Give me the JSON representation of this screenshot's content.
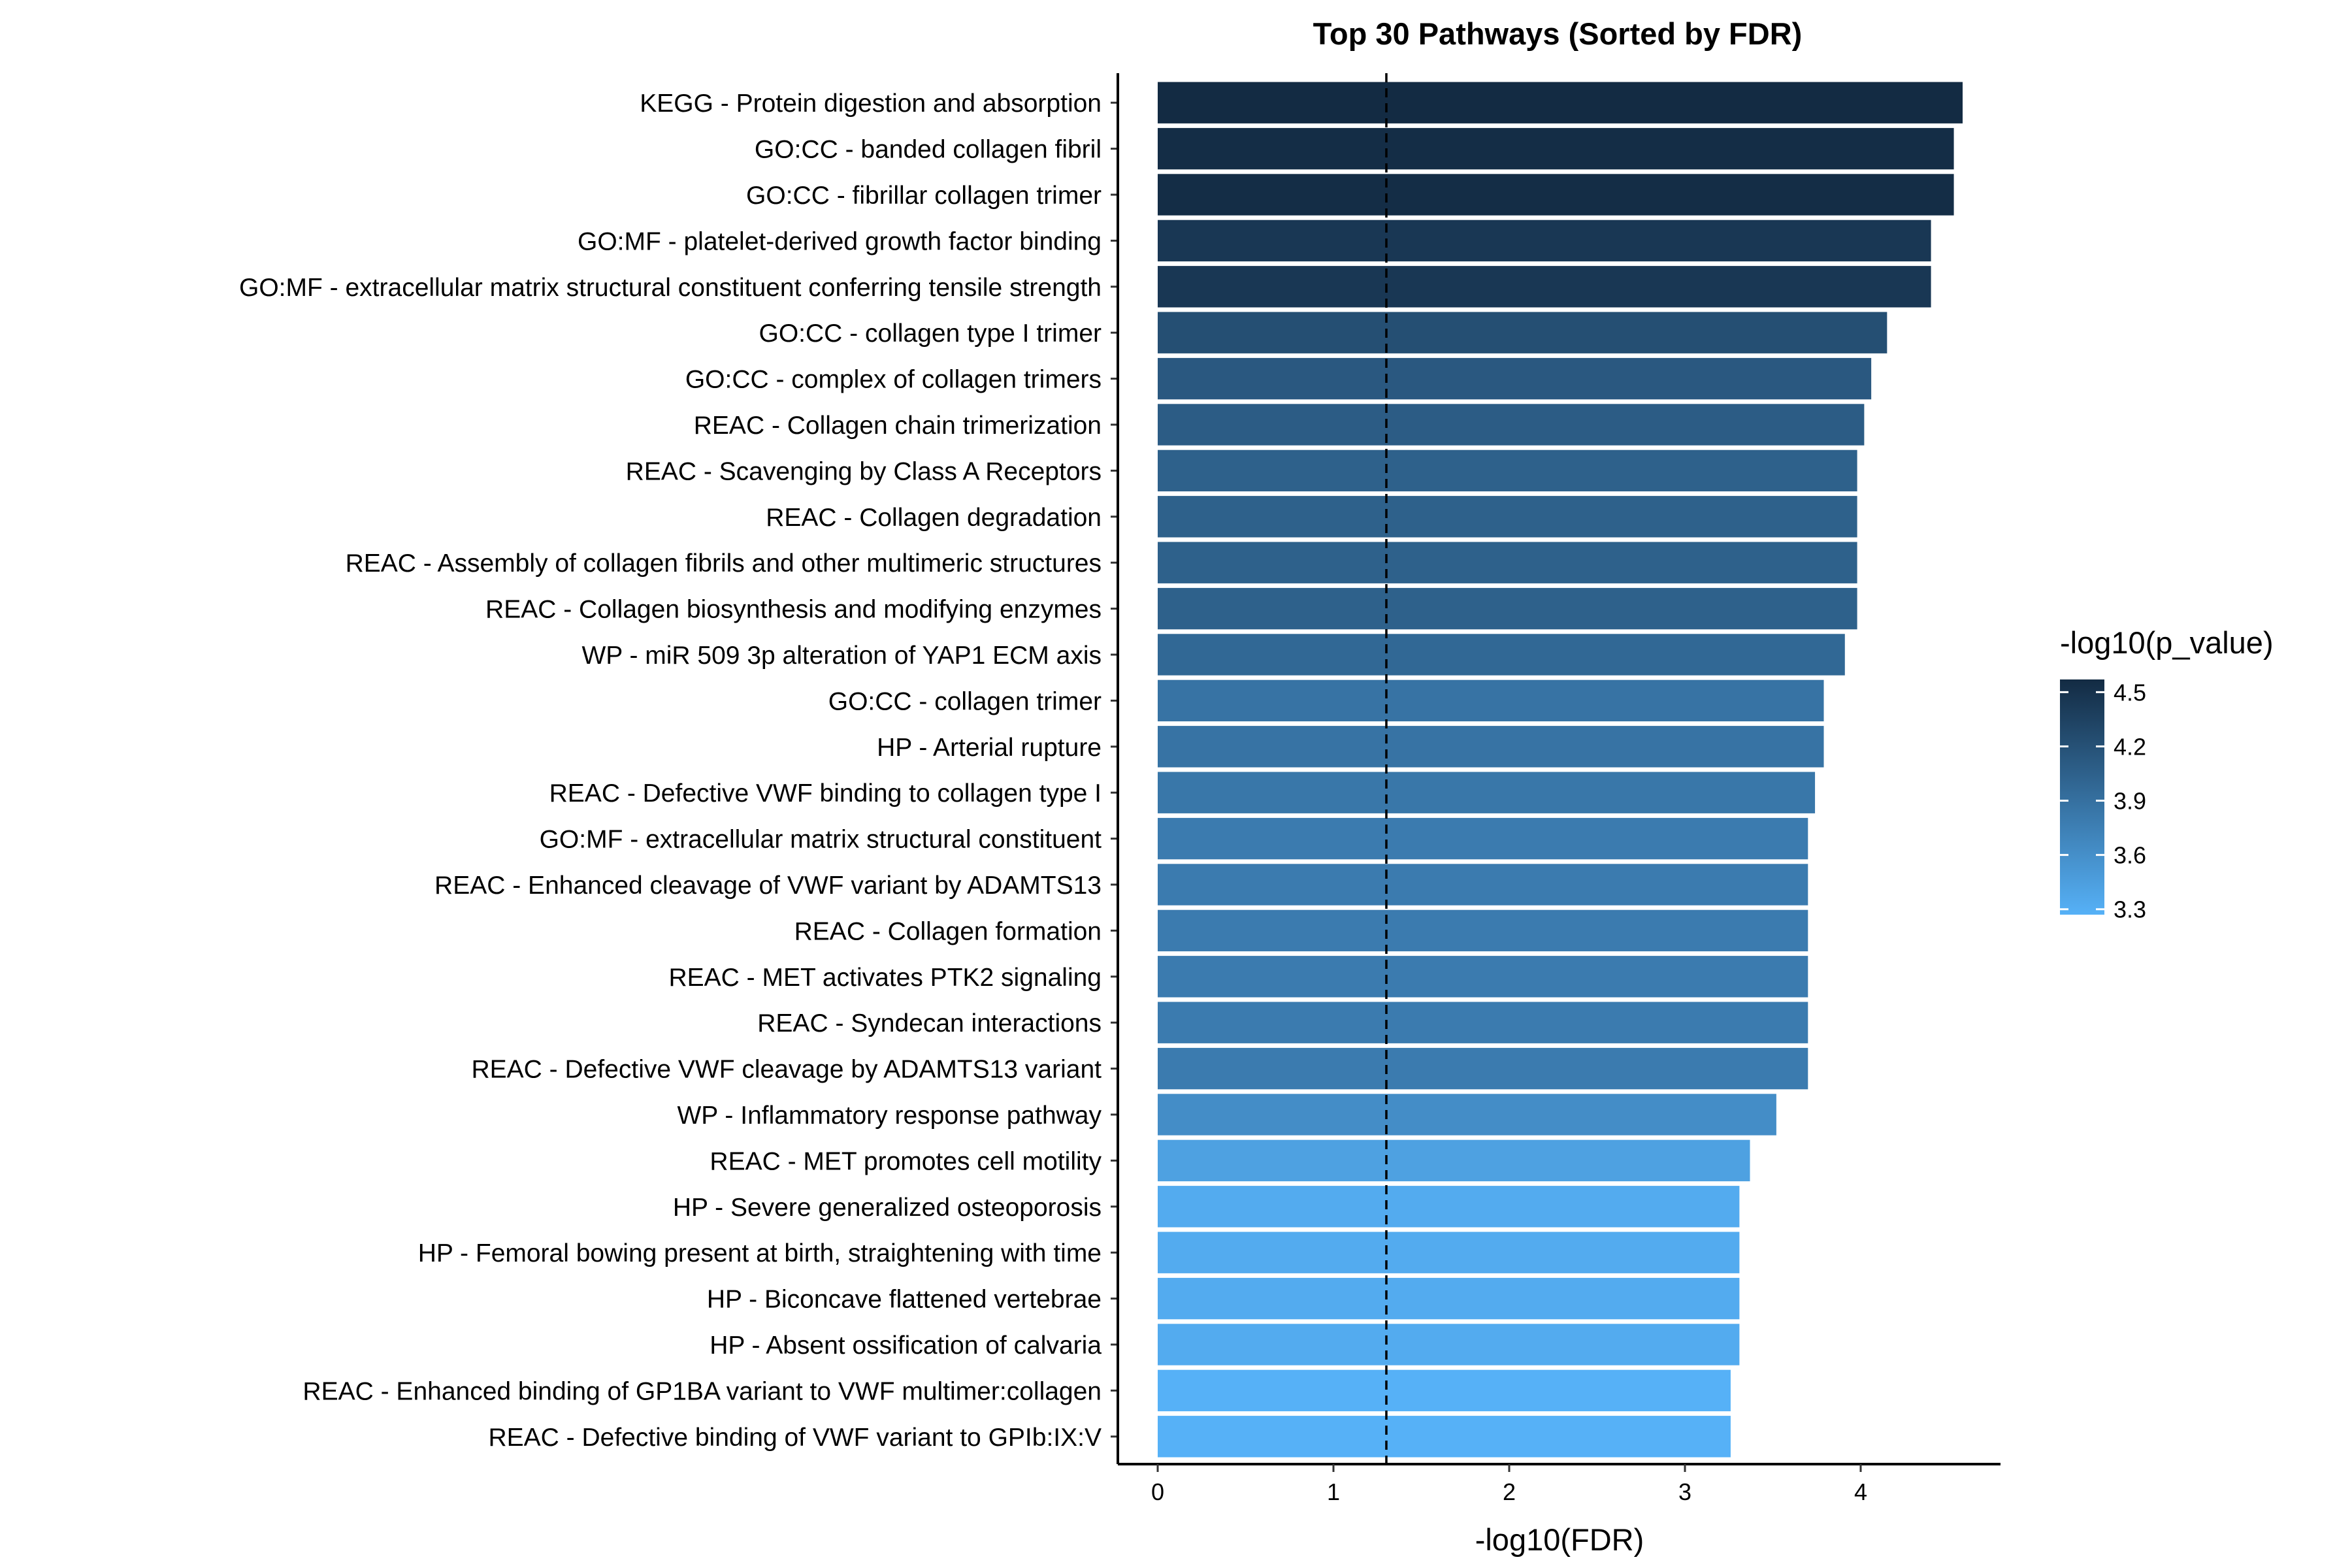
{
  "chart_data": {
    "type": "bar",
    "orientation": "horizontal",
    "title": "Top 30 Pathways (Sorted by FDR)",
    "xlabel": "-log10(FDR)",
    "ylabel": "",
    "xlim": [
      0,
      4.75
    ],
    "x_ticks": [
      0,
      1,
      2,
      3,
      4
    ],
    "reference_line": {
      "x": 1.301,
      "style": "dashed"
    },
    "grid": false,
    "legend": {
      "title": "-log10(p_value)",
      "placement": "right",
      "type": "colorbar",
      "ticks": [
        4.5,
        4.2,
        3.9,
        3.6,
        3.3
      ],
      "range": [
        3.27,
        4.57
      ],
      "color_low": "#56B1F7",
      "color_high": "#132B43"
    },
    "categories": [
      "KEGG - Protein digestion and absorption",
      "GO:CC - banded collagen fibril",
      "GO:CC - fibrillar collagen trimer",
      "GO:MF - platelet-derived growth factor binding",
      "GO:MF - extracellular matrix structural constituent conferring tensile strength",
      "GO:CC - collagen type I trimer",
      "GO:CC - complex of collagen trimers",
      "REAC - Collagen chain trimerization",
      "REAC - Scavenging by Class A Receptors",
      "REAC - Collagen degradation",
      "REAC - Assembly of collagen fibrils and other multimeric structures",
      "REAC - Collagen biosynthesis and modifying enzymes",
      "WP - miR 509 3p alteration of YAP1 ECM axis",
      "GO:CC - collagen trimer",
      "HP - Arterial rupture",
      "REAC - Defective VWF binding to collagen type I ",
      "GO:MF - extracellular matrix structural constituent",
      "REAC - Enhanced cleavage of VWF variant by ADAMTS13",
      "REAC - Collagen formation",
      "REAC - MET activates PTK2 signaling",
      "REAC - Syndecan interactions",
      "REAC - Defective VWF cleavage by ADAMTS13 variant",
      "WP - Inflammatory response pathway",
      "REAC - MET promotes cell motility",
      "HP - Severe generalized osteoporosis",
      "HP - Femoral bowing present at birth, straightening with time",
      "HP - Biconcave flattened vertebrae",
      "HP - Absent ossification of calvaria",
      "REAC - Enhanced binding of GP1BA variant to VWF multimer:collagen ",
      "REAC - Defective binding of VWF variant to GPIb:IX:V"
    ],
    "series": [
      {
        "values": [
          4.58,
          4.53,
          4.53,
          4.4,
          4.4,
          4.15,
          4.06,
          4.02,
          3.98,
          3.98,
          3.98,
          3.98,
          3.91,
          3.79,
          3.79,
          3.74,
          3.7,
          3.7,
          3.7,
          3.7,
          3.7,
          3.7,
          3.52,
          3.37,
          3.31,
          3.31,
          3.31,
          3.31,
          3.26,
          3.26
        ]
      }
    ],
    "color_values": [
      4.57,
      4.55,
      4.55,
      4.45,
      4.45,
      4.22,
      4.13,
      4.09,
      4.05,
      4.05,
      4.05,
      4.05,
      3.98,
      3.87,
      3.87,
      3.83,
      3.79,
      3.79,
      3.79,
      3.79,
      3.79,
      3.79,
      3.62,
      3.43,
      3.33,
      3.33,
      3.33,
      3.33,
      3.27,
      3.27
    ]
  }
}
